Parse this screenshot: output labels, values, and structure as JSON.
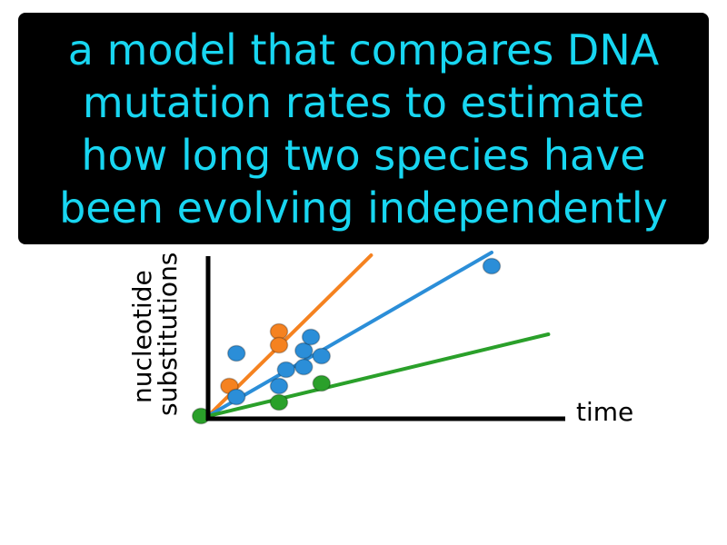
{
  "definition": {
    "lines": [
      "a model that compares DNA",
      "mutation rates to estimate",
      "how long two species have",
      "been evolving independently"
    ],
    "text_color": "#18d6f1",
    "background_color": "#000000"
  },
  "diagram": {
    "x_axis_label": "time",
    "y_axis_label_lines": [
      "nucleotide",
      "substitutions"
    ],
    "axis_color": "#000000",
    "series": [
      {
        "color": "#f58220",
        "line_from": [
          0,
          0
        ],
        "line_to": [
          0.46,
          0.59
        ],
        "points": [
          [
            0.06,
            0.11
          ],
          [
            0.2,
            0.31
          ],
          [
            0.2,
            0.26
          ]
        ]
      },
      {
        "color": "#2b8ed8",
        "line_from": [
          0,
          0
        ],
        "line_to": [
          0.8,
          0.6
        ],
        "points": [
          [
            0.08,
            0.23
          ],
          [
            0.08,
            0.07
          ],
          [
            0.2,
            0.11
          ],
          [
            0.22,
            0.17
          ],
          [
            0.27,
            0.18
          ],
          [
            0.27,
            0.24
          ],
          [
            0.29,
            0.29
          ],
          [
            0.32,
            0.22
          ],
          [
            0.8,
            0.55
          ]
        ]
      },
      {
        "color": "#2aa02a",
        "line_from": [
          0,
          0
        ],
        "line_to": [
          0.96,
          0.3
        ],
        "points": [
          [
            0.2,
            0.05
          ],
          [
            0.32,
            0.12
          ],
          [
            -0.02,
            0.0
          ]
        ]
      }
    ]
  }
}
